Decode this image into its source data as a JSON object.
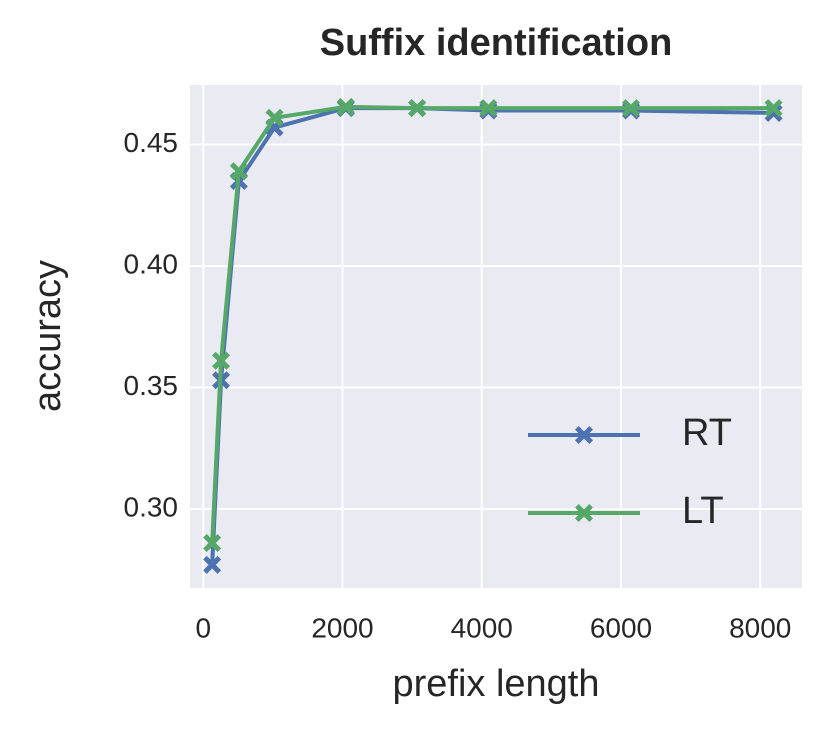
{
  "chart_data": {
    "type": "line",
    "title": "Suffix identification",
    "x_label": "prefix length",
    "y_label": "accuracy",
    "x": [
      128,
      256,
      512,
      1024,
      2048,
      3072,
      4096,
      6144,
      8192
    ],
    "series": [
      {
        "name": "RT",
        "color": "#4c72b0",
        "values": [
          0.277,
          0.353,
          0.435,
          0.457,
          0.465,
          0.465,
          0.464,
          0.464,
          0.463
        ]
      },
      {
        "name": "LT",
        "color": "#55a868",
        "values": [
          0.286,
          0.361,
          0.439,
          0.461,
          0.4655,
          0.465,
          0.465,
          0.465,
          0.465
        ]
      }
    ],
    "xlim": [
      -190,
      8600
    ],
    "xticks": [
      0,
      2000,
      4000,
      6000,
      8000
    ],
    "ylim": [
      0.2675,
      0.4745
    ],
    "yticks": [
      {
        "value": 0.3,
        "label": "0.30"
      },
      0.35,
      {
        "value": 0.4,
        "label": "0.40"
      },
      0.45
    ],
    "grid": true,
    "legend": "lower right",
    "marker": "X"
  }
}
